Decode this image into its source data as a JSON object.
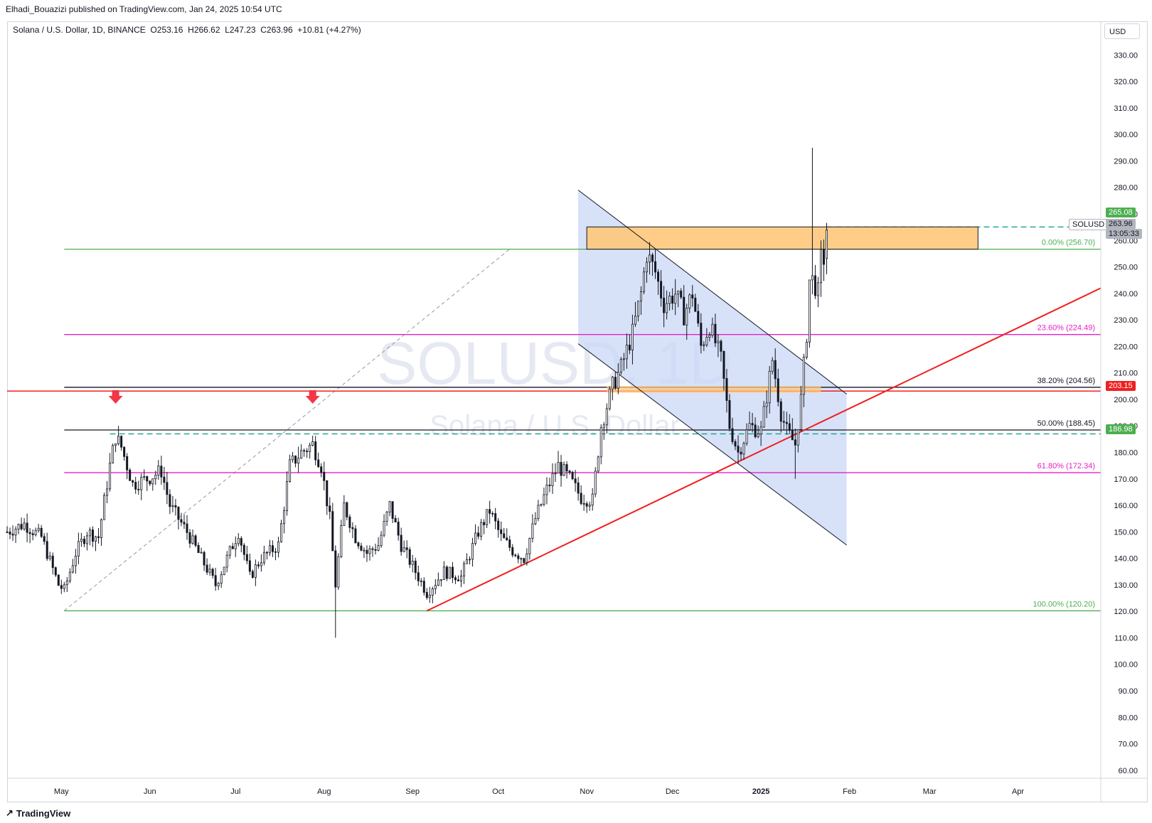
{
  "header": {
    "publisher_text": "Elhadi_Bouazizi published on TradingView.com, Jan 24, 2025 10:54 UTC"
  },
  "legend": {
    "symbol": "Solana / U.S. Dollar, 1D, BINANCE",
    "o_label": "O",
    "o_value": "253.16",
    "h_label": "H",
    "h_value": "266.62",
    "l_label": "L",
    "l_value": "247.23",
    "c_label": "C",
    "c_value": "263.96",
    "change": "+10.81 (+4.27%)"
  },
  "watermark": {
    "line1": "SOLUSD, 1D",
    "line2": "Solana / U.S. Dollar"
  },
  "currency": "USD",
  "footer": {
    "brand": "TradingView"
  },
  "price_tags": {
    "top_green": "265.08",
    "symbol": "SOLUSD",
    "last_price": "263.96",
    "countdown": "13:05:33",
    "red_level": "203.15",
    "green_level": "186.98"
  },
  "colors": {
    "up": "#089981",
    "down": "#f23645",
    "candle": "#131722",
    "fib_green": "#4caf50",
    "fib_magenta": "#e91ec8",
    "fib_black": "#131722",
    "trend_red": "#f01f1f",
    "channel_fill": "#c9d8f7",
    "zone_orange": "#ffc87a"
  },
  "chart_data": {
    "type": "candlestick",
    "title": "Solana / U.S. Dollar, 1D, BINANCE",
    "y_axis": {
      "ticks": [
        "330.00",
        "320.00",
        "310.00",
        "300.00",
        "290.00",
        "280.00",
        "270.00",
        "260.00",
        "250.00",
        "240.00",
        "230.00",
        "220.00",
        "210.00",
        "200.00",
        "190.00",
        "180.00",
        "170.00",
        "160.00",
        "150.00",
        "140.00",
        "130.00",
        "120.00",
        "110.00",
        "100.00",
        "90.00",
        "80.00",
        "70.00",
        "60.00"
      ],
      "range": [
        57,
        336
      ]
    },
    "x_axis": {
      "ticks": [
        "May",
        "Jun",
        "Jul",
        "Aug",
        "Sep",
        "Oct",
        "Nov",
        "Dec",
        "2025",
        "Feb",
        "Mar",
        "Apr"
      ],
      "tick_dates": [
        "2024-05-01",
        "2024-06-01",
        "2024-07-01",
        "2024-08-01",
        "2024-09-01",
        "2024-10-01",
        "2024-11-01",
        "2024-12-01",
        "2025-01-01",
        "2025-02-01",
        "2025-03-01",
        "2025-04-01"
      ],
      "range": [
        "2024-04-12",
        "2025-04-30"
      ]
    },
    "fibonacci": [
      {
        "label": "0.00% (256.70)",
        "price": 256.7
      },
      {
        "label": "23.60% (224.49)",
        "price": 224.49
      },
      {
        "label": "38.20% (204.56)",
        "price": 204.56
      },
      {
        "label": "50.00% (188.45)",
        "price": 188.45
      },
      {
        "label": "61.80% (172.34)",
        "price": 172.34
      },
      {
        "label": "100.00% (120.20)",
        "price": 120.2
      }
    ],
    "horizontal_levels": [
      {
        "price": 203.15,
        "style": "solid-red"
      },
      {
        "price": 186.98,
        "style": "dashed-green"
      },
      {
        "price": 265.08,
        "style": "dashed-green"
      }
    ],
    "resistance_zone": {
      "from": "2024-11-01",
      "to": "2025-03-18",
      "low": 256.7,
      "high": 265.1
    },
    "support_zone": {
      "from": "2024-11-08",
      "to": "2025-01-22",
      "low": 202.5,
      "high": 205.0
    },
    "trendline": {
      "from": [
        "2024-09-06",
        120.2
      ],
      "to": [
        "2025-04-30",
        242.0
      ]
    },
    "channel": {
      "upper": {
        "from": [
          "2024-10-29",
          279.0
        ],
        "to": [
          "2025-01-31",
          202.0
        ]
      },
      "lower": {
        "from": [
          "2024-10-29",
          221.0
        ],
        "to": [
          "2025-01-31",
          145.0
        ]
      }
    },
    "markers": [
      {
        "date": "2024-05-20",
        "type": "down-arrow"
      },
      {
        "date": "2024-07-28",
        "type": "down-arrow"
      }
    ],
    "ohlc_keypoints": [
      [
        "2024-04-12",
        150
      ],
      [
        "2024-04-18",
        153
      ],
      [
        "2024-04-24",
        148
      ],
      [
        "2024-04-30",
        130
      ],
      [
        "2024-05-02",
        128
      ],
      [
        "2024-05-06",
        142
      ],
      [
        "2024-05-10",
        150
      ],
      [
        "2024-05-14",
        148
      ],
      [
        "2024-05-18",
        175
      ],
      [
        "2024-05-20",
        186
      ],
      [
        "2024-05-22",
        182
      ],
      [
        "2024-05-26",
        168
      ],
      [
        "2024-05-31",
        170
      ],
      [
        "2024-06-05",
        173
      ],
      [
        "2024-06-08",
        160
      ],
      [
        "2024-06-14",
        150
      ],
      [
        "2024-06-20",
        138
      ],
      [
        "2024-06-24",
        130
      ],
      [
        "2024-06-28",
        140
      ],
      [
        "2024-07-02",
        150
      ],
      [
        "2024-07-06",
        133
      ],
      [
        "2024-07-10",
        140
      ],
      [
        "2024-07-16",
        145
      ],
      [
        "2024-07-20",
        175
      ],
      [
        "2024-07-24",
        180
      ],
      [
        "2024-07-28",
        183
      ],
      [
        "2024-07-31",
        175
      ],
      [
        "2024-08-03",
        155
      ],
      [
        "2024-08-05",
        130
      ],
      [
        "2024-08-08",
        160
      ],
      [
        "2024-08-12",
        148
      ],
      [
        "2024-08-16",
        142
      ],
      [
        "2024-08-20",
        145
      ],
      [
        "2024-08-24",
        160
      ],
      [
        "2024-08-28",
        145
      ],
      [
        "2024-09-02",
        135
      ],
      [
        "2024-09-06",
        127
      ],
      [
        "2024-09-12",
        135
      ],
      [
        "2024-09-18",
        133
      ],
      [
        "2024-09-24",
        150
      ],
      [
        "2024-09-28",
        158
      ],
      [
        "2024-10-02",
        148
      ],
      [
        "2024-10-06",
        143
      ],
      [
        "2024-10-10",
        140
      ],
      [
        "2024-10-14",
        155
      ],
      [
        "2024-10-18",
        166
      ],
      [
        "2024-10-22",
        175
      ],
      [
        "2024-10-26",
        170
      ],
      [
        "2024-10-30",
        163
      ],
      [
        "2024-11-03",
        162
      ],
      [
        "2024-11-06",
        190
      ],
      [
        "2024-11-10",
        205
      ],
      [
        "2024-11-13",
        212
      ],
      [
        "2024-11-17",
        225
      ],
      [
        "2024-11-20",
        240
      ],
      [
        "2024-11-22",
        255
      ],
      [
        "2024-11-25",
        248
      ],
      [
        "2024-11-28",
        236
      ],
      [
        "2024-12-02",
        240
      ],
      [
        "2024-12-05",
        232
      ],
      [
        "2024-12-08",
        240
      ],
      [
        "2024-12-11",
        220
      ],
      [
        "2024-12-14",
        228
      ],
      [
        "2024-12-18",
        215
      ],
      [
        "2024-12-21",
        190
      ],
      [
        "2024-12-24",
        180
      ],
      [
        "2024-12-28",
        190
      ],
      [
        "2025-01-01",
        188
      ],
      [
        "2025-01-05",
        215
      ],
      [
        "2025-01-08",
        195
      ],
      [
        "2025-01-10",
        188
      ],
      [
        "2025-01-13",
        183
      ],
      [
        "2025-01-15",
        200
      ],
      [
        "2025-01-17",
        225
      ],
      [
        "2025-01-18",
        245
      ],
      [
        "2025-01-19",
        245
      ],
      [
        "2025-01-20",
        243
      ],
      [
        "2025-01-21",
        240
      ],
      [
        "2025-01-22",
        253
      ],
      [
        "2025-01-23",
        253.16
      ],
      [
        "2025-01-24",
        263.96
      ]
    ],
    "last_candle": {
      "open": 253.16,
      "high": 266.62,
      "low": 247.23,
      "close": 263.96
    }
  }
}
